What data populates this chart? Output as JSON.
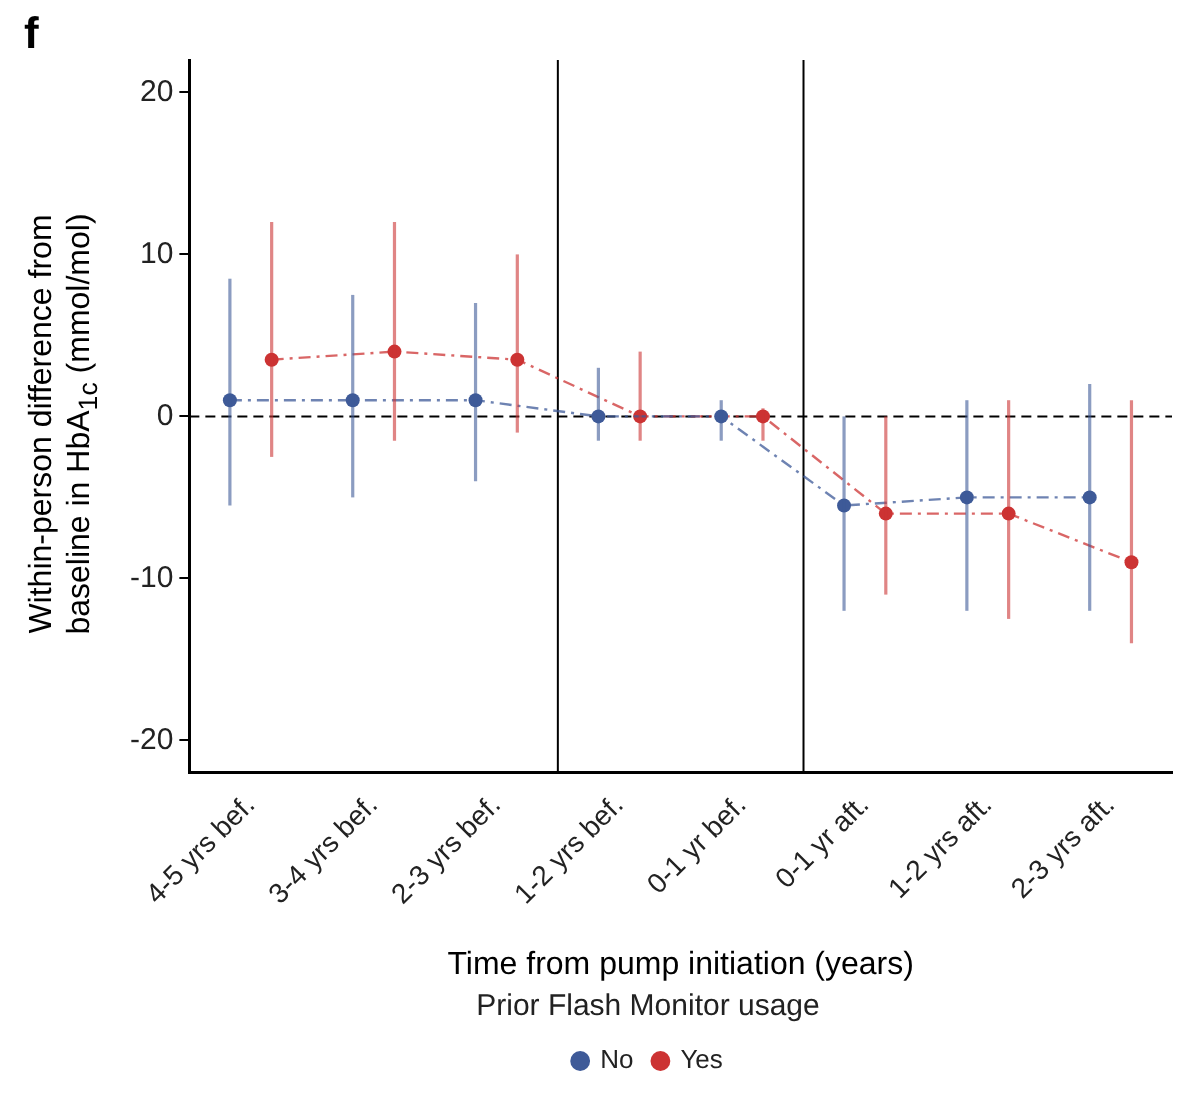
{
  "chart_data": {
    "type": "line",
    "title": "f",
    "xlabel": "Time from pump initiation (years)",
    "ylabel": "Within-person difference from\nbaseline in HbA$_{1c}$ (mmol/mol)",
    "legend_title": "Prior Flash Monitor usage",
    "categories": [
      "4-5 yrs bef.",
      "3-4 yrs bef.",
      "2-3 yrs bef.",
      "1-2 yrs bef.",
      "0-1 yr bef.",
      "0-1 yr aft.",
      "1-2 yrs aft.",
      "2-3 yrs aft."
    ],
    "series": [
      {
        "name": "No",
        "color": "#3e5a98",
        "values": [
          1,
          1,
          1,
          0,
          0,
          -5.5,
          -5,
          -5
        ],
        "errors": [
          [
            -5.5,
            8.5
          ],
          [
            -5,
            7.5
          ],
          [
            -4,
            7
          ],
          [
            -1.5,
            3
          ],
          [
            -1.5,
            1
          ],
          [
            -12,
            0
          ],
          [
            -12,
            1
          ],
          [
            -12,
            2
          ]
        ]
      },
      {
        "name": "Yes",
        "color": "#cc3333",
        "values": [
          3.5,
          4,
          3.5,
          0,
          0,
          -6,
          -6,
          -9
        ],
        "errors": [
          [
            -2.5,
            12
          ],
          [
            -1.5,
            12
          ],
          [
            -1,
            10
          ],
          [
            -1.5,
            4
          ],
          [
            -1.5,
            0.5
          ],
          [
            -11,
            0
          ],
          [
            -12.5,
            1
          ],
          [
            -14,
            1
          ]
        ]
      }
    ],
    "ylim": [
      -22,
      22
    ],
    "yticks": [
      -20,
      -10,
      0,
      10,
      20
    ],
    "ref_lines": [
      {
        "axis": "y",
        "value": 0,
        "color": "#000000",
        "line_style": "dashed"
      }
    ],
    "grid": false,
    "legend": "bottom",
    "marker": "circle",
    "line_style": "dashed"
  }
}
